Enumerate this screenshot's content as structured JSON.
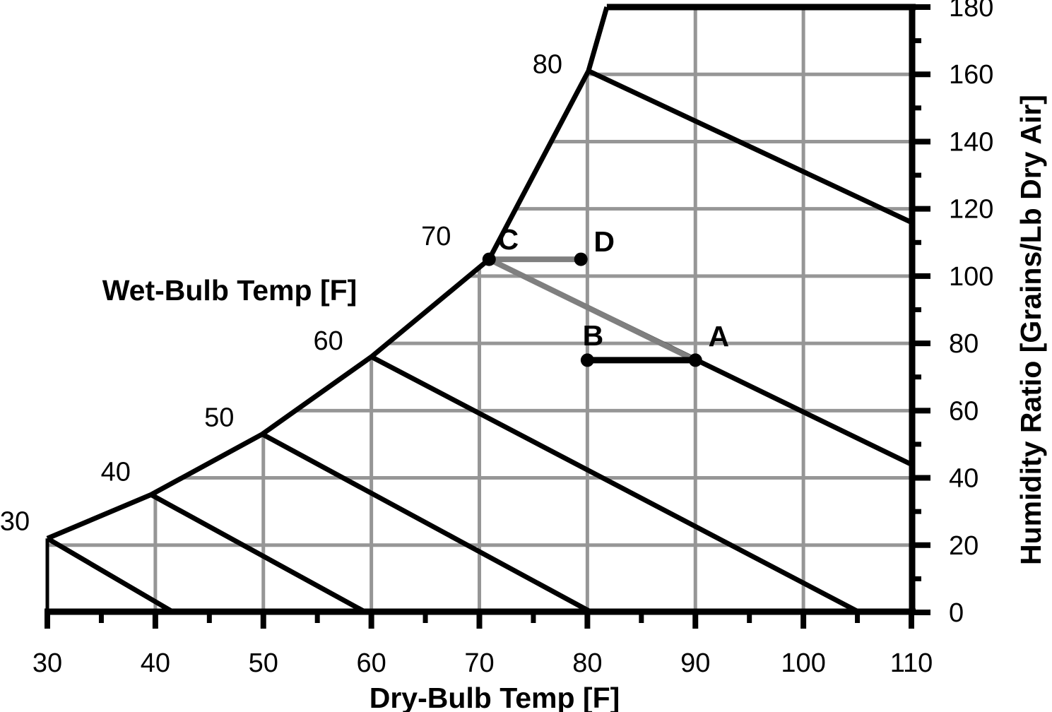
{
  "chart_data": {
    "type": "line",
    "chart_kind": "psychrometric",
    "title": "",
    "xlabel": "Dry-Bulb Temp [F]",
    "ylabel": "Humidity Ratio [Grains/Lb Dry Air]",
    "wet_bulb_axis_label": "Wet-Bulb Temp [F]",
    "xlim": [
      30,
      110
    ],
    "ylim": [
      0,
      180
    ],
    "x_major_ticks": [
      30,
      40,
      50,
      60,
      70,
      80,
      90,
      100,
      110
    ],
    "x_minor_ticks": [
      35,
      45,
      55,
      65,
      75,
      85,
      95,
      105
    ],
    "y_major_ticks": [
      0,
      20,
      40,
      60,
      80,
      100,
      120,
      140,
      160,
      180
    ],
    "y_minor_ticks": [
      10,
      30,
      50,
      70,
      90,
      110,
      130,
      150,
      170
    ],
    "grid": {
      "on": true,
      "x_values": [
        40,
        50,
        60,
        70,
        80,
        90,
        100
      ],
      "y_values": [
        20,
        40,
        60,
        80,
        100,
        120,
        140,
        160
      ]
    },
    "saturation_curve": [
      [
        30,
        22
      ],
      [
        39.6,
        35
      ],
      [
        49.9,
        53
      ],
      [
        60,
        76
      ],
      [
        70.9,
        105
      ],
      [
        80.1,
        161
      ],
      [
        81.8,
        180
      ]
    ],
    "top_boundary": {
      "from": [
        81.8,
        180
      ],
      "to": [
        110,
        180
      ]
    },
    "left_boundary": {
      "from": [
        30,
        0
      ],
      "to": [
        30,
        22
      ]
    },
    "wet_bulb_lines": [
      {
        "label": "30",
        "value": 30,
        "from": [
          30,
          22
        ],
        "to": [
          41.7,
          0
        ]
      },
      {
        "label": "40",
        "value": 40,
        "from": [
          39.6,
          35
        ],
        "to": [
          59.5,
          0
        ]
      },
      {
        "label": "50",
        "value": 50,
        "from": [
          49.9,
          53
        ],
        "to": [
          80.4,
          0
        ]
      },
      {
        "label": "60",
        "value": 60,
        "from": [
          60,
          76
        ],
        "to": [
          105.2,
          0
        ]
      },
      {
        "label": "70",
        "value": 70,
        "from": [
          70.9,
          105
        ],
        "to": [
          110,
          44
        ]
      },
      {
        "label": "80",
        "value": 80,
        "from": [
          80.1,
          161
        ],
        "to": [
          110,
          116
        ]
      }
    ],
    "points": [
      {
        "name": "A",
        "dry_bulb": 90,
        "humidity_ratio": 75
      },
      {
        "name": "B",
        "dry_bulb": 80,
        "humidity_ratio": 75
      },
      {
        "name": "C",
        "dry_bulb": 70.9,
        "humidity_ratio": 105
      },
      {
        "name": "D",
        "dry_bulb": 79.4,
        "humidity_ratio": 105
      }
    ],
    "process_lines": [
      {
        "from": "C",
        "to": "A",
        "color": "#7f7f7f",
        "width": 8
      },
      {
        "from": "C",
        "to": "D",
        "color": "#7f7f7f",
        "width": 8
      },
      {
        "from": "B",
        "to": "A",
        "color": "#000000",
        "width": 9
      }
    ],
    "colors": {
      "background": "#ffffff",
      "line": "#000000",
      "grid": "#969696",
      "process_gray": "#7f7f7f"
    },
    "legend": {
      "visible": false
    }
  }
}
